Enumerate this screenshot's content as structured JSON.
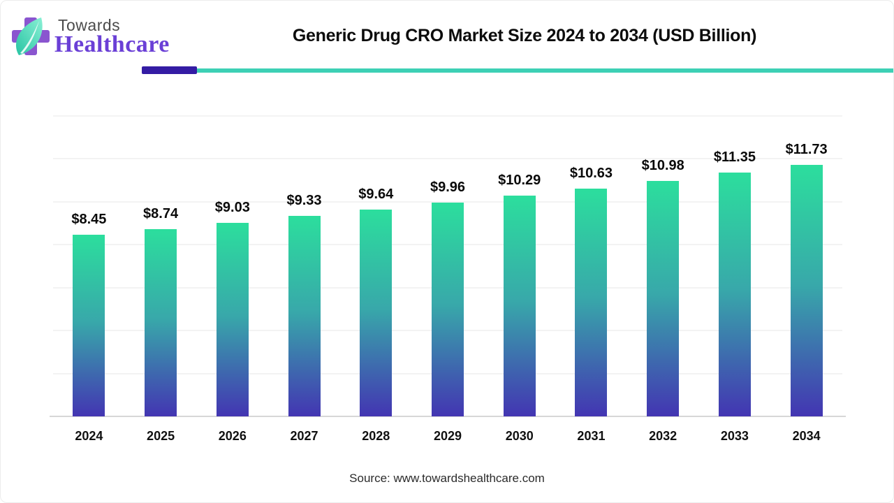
{
  "brand": {
    "towards": "Towards",
    "healthcare": "Healthcare",
    "cross_color": "#8a55cf",
    "leaf_color_start": "#8af0d5",
    "leaf_color_end": "#28c4a3",
    "healthcare_color": "#6a3fd6"
  },
  "header": {
    "title": "Generic Drug CRO Market Size 2024 to 2034 (USD Billion)",
    "underline_purple_color": "#341ca4",
    "underline_teal_color": "#3dd0b5"
  },
  "chart_data": {
    "type": "bar",
    "title": "Generic Drug CRO Market Size 2024 to 2034 (USD Billion)",
    "categories": [
      "2024",
      "2025",
      "2026",
      "2027",
      "2028",
      "2029",
      "2030",
      "2031",
      "2032",
      "2033",
      "2034"
    ],
    "values": [
      8.45,
      8.74,
      9.03,
      9.33,
      9.64,
      9.96,
      10.29,
      10.63,
      10.98,
      11.35,
      11.73
    ],
    "value_labels": [
      "$8.45",
      "$8.74",
      "$9.03",
      "$9.33",
      "$9.64",
      "$9.96",
      "$10.29",
      "$10.63",
      "$10.98",
      "$11.35",
      "$11.73"
    ],
    "xlabel": "",
    "ylabel": "",
    "ylim": [
      0,
      14
    ],
    "grid_step": 2,
    "grid": true,
    "legend": false,
    "bar_gradient_top": "#2cde9d",
    "bar_gradient_mid": "#38a8aa",
    "bar_gradient_bottom": "#4335b2"
  },
  "footer": {
    "source": "Source: www.towardshealthcare.com"
  }
}
